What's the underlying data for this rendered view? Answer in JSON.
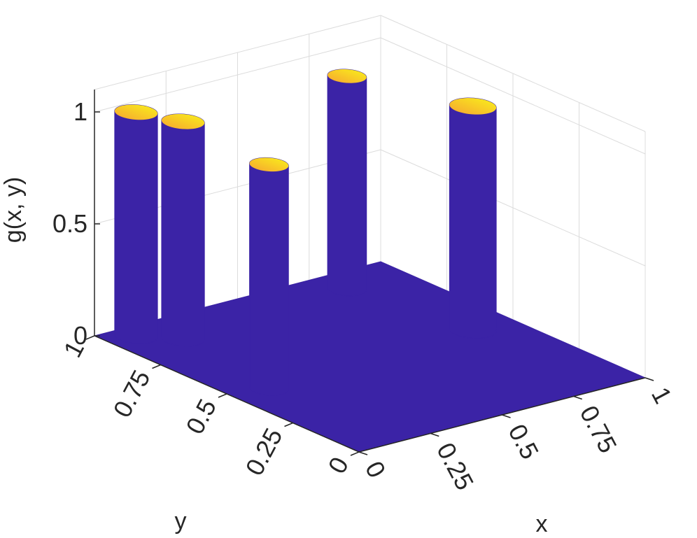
{
  "chart_data": {
    "type": "surface3d",
    "zlabel": "g(x, y)",
    "xlabel": "x",
    "ylabel": "y",
    "xlim": [
      0,
      1
    ],
    "ylim": [
      0,
      1
    ],
    "zlim": [
      0,
      1
    ],
    "x_ticks": [
      "0",
      "0.25",
      "0.5",
      "0.75",
      "1"
    ],
    "y_ticks": [
      "0",
      "0.25",
      "0.5",
      "0.75",
      "1"
    ],
    "z_ticks": [
      "0",
      "0.5",
      "1"
    ],
    "grid": true,
    "base_color": "#3b23a6",
    "top_color_low": "#f6a431",
    "top_color_high": "#f9f21a",
    "bumps": [
      {
        "x": 0.09,
        "y": 0.94,
        "r": 0.055,
        "height": 1.0
      },
      {
        "x": 0.18,
        "y": 0.86,
        "r": 0.055,
        "height": 0.97
      },
      {
        "x": 0.12,
        "y": 0.47,
        "r": 0.05,
        "height": 1.0
      },
      {
        "x": 0.79,
        "y": 0.9,
        "r": 0.05,
        "height": 0.95
      },
      {
        "x": 0.86,
        "y": 0.5,
        "r": 0.06,
        "height": 1.0
      }
    ]
  }
}
